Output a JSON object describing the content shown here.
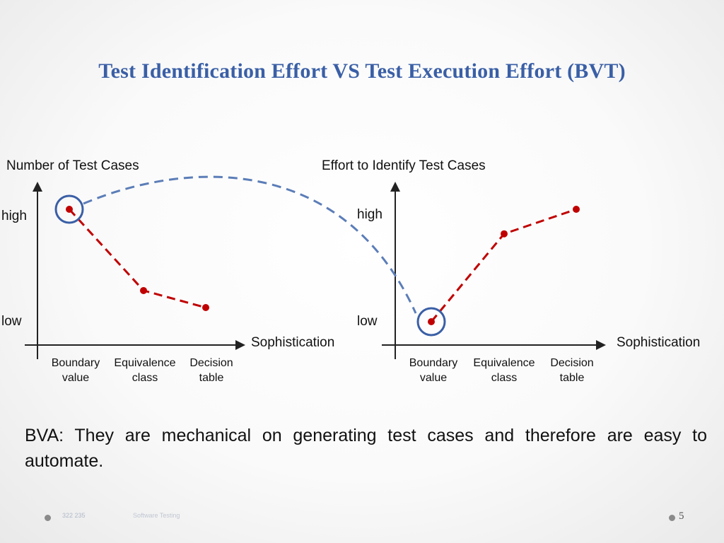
{
  "slide": {
    "title": "Test Identification Effort VS Test Execution Effort (BVT)",
    "body": "BVA: They are mechanical on generating test cases and therefore are easy to automate.",
    "footer_left": "322 235",
    "footer_mid": "Software Testing",
    "slide_number": "5"
  },
  "colors": {
    "title": "#3a5fa6",
    "series": "#c00000",
    "highlight": "#3a5fa6",
    "connector": "#5b7db8"
  },
  "chart_data": [
    {
      "type": "line",
      "title": "Number of Test Cases",
      "xlabel": "Sophistication",
      "ylabel": "",
      "y_levels": [
        "high",
        "low"
      ],
      "categories": [
        "Boundary value",
        "Equivalence class",
        "Decision table"
      ],
      "category_lines": [
        [
          "Boundary",
          "value"
        ],
        [
          "Equivalence",
          "class"
        ],
        [
          "Decision",
          "table"
        ]
      ],
      "values": [
        0.95,
        0.52,
        0.43
      ],
      "ylim": [
        0,
        1
      ],
      "highlighted_index": 0,
      "grid": false,
      "legend": "none"
    },
    {
      "type": "line",
      "title": "Effort to Identify Test Cases",
      "xlabel": "Sophistication",
      "ylabel": "",
      "y_levels": [
        "high",
        "low"
      ],
      "categories": [
        "Boundary value",
        "Equivalence class",
        "Decision table"
      ],
      "category_lines": [
        [
          "Boundary",
          "value"
        ],
        [
          "Equivalence",
          "class"
        ],
        [
          "Decision",
          "table"
        ]
      ],
      "values": [
        0.42,
        0.85,
        0.97
      ],
      "ylim": [
        0,
        1
      ],
      "highlighted_index": 0,
      "grid": false,
      "legend": "none"
    }
  ]
}
